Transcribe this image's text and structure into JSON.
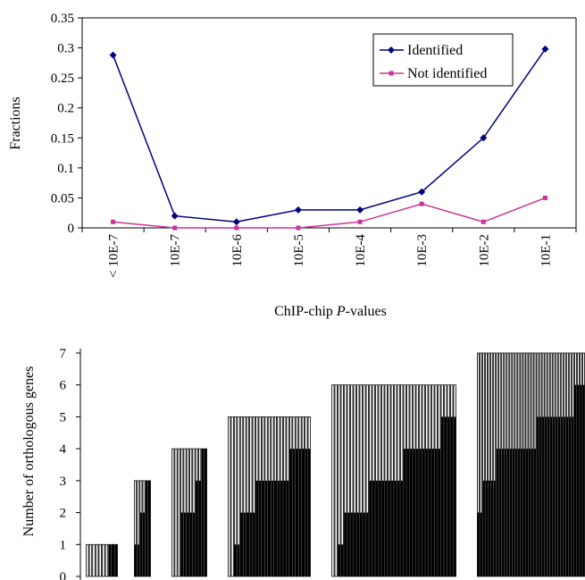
{
  "colors": {
    "identified": "#000080",
    "not_identified": "#cc3399",
    "bar_fill": "#ffffff",
    "bar_stroke": "#000000",
    "bar_solid": "#000000"
  },
  "chart_data": [
    {
      "type": "line",
      "title": "",
      "xlabel_prefix": "ChIP-chip ",
      "xlabel_italic": "P",
      "xlabel_suffix": "-values",
      "ylabel": "Fractions",
      "categories": [
        "< 10E-7",
        "10E-7",
        "10E-6",
        "10E-5",
        "10E-4",
        "10E-3",
        "10E-2",
        "10E-1"
      ],
      "ylim": [
        0,
        0.35
      ],
      "yticks": [
        "0",
        "0.05",
        "0.1",
        "0.15",
        "0.2",
        "0.25",
        "0.3",
        "0.35"
      ],
      "grid": false,
      "legend_position": "top-right",
      "series": [
        {
          "name": "Identified",
          "values": [
            0.288,
            0.02,
            0.01,
            0.03,
            0.03,
            0.06,
            0.15,
            0.298
          ]
        },
        {
          "name": "Not identified",
          "values": [
            0.01,
            0.0,
            0.0,
            0.0,
            0.01,
            0.04,
            0.01,
            0.05
          ]
        }
      ]
    },
    {
      "type": "bar",
      "title": "",
      "xlabel": "",
      "ylabel": "Number of orthologous genes",
      "ylim": [
        0,
        7
      ],
      "yticks": [
        "0",
        "1",
        "2",
        "3",
        "4",
        "5",
        "6",
        "7"
      ],
      "grid": false,
      "groups": [
        {
          "total": 1,
          "bar_count": 10,
          "solid_values": [
            0,
            0,
            0,
            0,
            0,
            0,
            0,
            1,
            1,
            1
          ]
        },
        {
          "total": 3,
          "bar_count": 6,
          "solid_values": [
            1,
            1,
            2,
            2,
            3,
            3
          ]
        },
        {
          "total": 4,
          "bar_count": 12,
          "solid_values": [
            0,
            0,
            0,
            2,
            2,
            2,
            2,
            2,
            3,
            3,
            4,
            4
          ]
        },
        {
          "total": 5,
          "bar_count": 27,
          "solid_values": [
            0,
            0,
            1,
            1,
            2,
            2,
            2,
            2,
            2,
            3,
            3,
            3,
            3,
            3,
            3,
            3,
            3,
            3,
            3,
            3,
            4,
            4,
            4,
            4,
            4,
            4,
            4
          ]
        },
        {
          "total": 6,
          "bar_count": 40,
          "solid_values": [
            0,
            0,
            1,
            1,
            2,
            2,
            2,
            2,
            2,
            2,
            2,
            2,
            3,
            3,
            3,
            3,
            3,
            3,
            3,
            3,
            3,
            3,
            3,
            4,
            4,
            4,
            4,
            4,
            4,
            4,
            4,
            4,
            4,
            4,
            4,
            5,
            5,
            5,
            5,
            5
          ]
        },
        {
          "total": 7,
          "bar_count": 40,
          "solid_values": [
            2,
            2,
            3,
            3,
            3,
            3,
            3,
            4,
            4,
            4,
            4,
            4,
            4,
            4,
            4,
            4,
            4,
            4,
            4,
            4,
            4,
            4,
            5,
            5,
            5,
            5,
            5,
            5,
            5,
            5,
            5,
            5,
            5,
            5,
            5,
            5,
            6,
            6,
            6,
            6
          ]
        }
      ]
    }
  ]
}
